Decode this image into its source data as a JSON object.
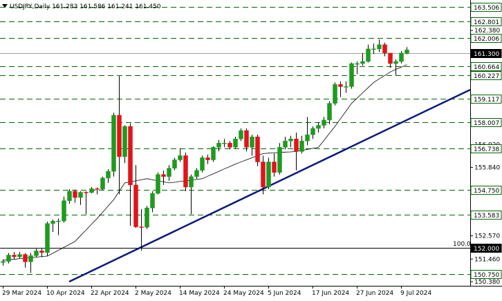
{
  "chart_data": {
    "type": "candlestick",
    "title": "USDJPY,Daily  161.283 161.586 161.241 161.450",
    "x_labels": [
      {
        "index": 0,
        "label": "29 Mar 2024"
      },
      {
        "index": 8,
        "label": "10 Apr 2024"
      },
      {
        "index": 16,
        "label": "22 Apr 2024"
      },
      {
        "index": 24,
        "label": "2 May 2024"
      },
      {
        "index": 32,
        "label": "14 May 2024"
      },
      {
        "index": 40,
        "label": "24 May 2024"
      },
      {
        "index": 48,
        "label": "5 Jun 2024"
      },
      {
        "index": 56,
        "label": "17 Jun 2024"
      },
      {
        "index": 64,
        "label": "27 Jun 2024"
      },
      {
        "index": 72,
        "label": "9 Jul 2024"
      }
    ],
    "open": [
      151.3,
      151.35,
      151.65,
      151.57,
      151.68,
      151.33,
      151.62,
      151.85,
      151.77,
      153.16,
      153.27,
      153.28,
      154.25,
      154.7,
      154.4,
      154.65,
      154.64,
      154.82,
      154.8,
      155.33,
      155.65,
      158.33,
      156.35,
      157.8,
      155.0,
      153.0,
      152.98,
      153.9,
      154.6,
      155.5,
      155.4,
      155.8,
      156.2,
      156.4,
      154.9,
      155.4,
      155.7,
      156.3,
      156.2,
      156.8,
      157.0,
      157.0,
      156.8,
      157.2,
      157.6,
      156.8,
      157.3,
      156.1,
      154.9,
      156.1,
      155.6,
      156.8,
      157.1,
      157.2,
      156.6,
      157.1,
      157.4,
      157.7,
      157.85,
      158.1,
      158.9,
      159.8,
      159.7,
      159.7,
      160.8,
      160.8,
      160.9,
      161.5,
      161.5,
      161.7,
      161.3,
      160.8,
      160.9,
      161.283
    ],
    "high": [
      151.45,
      151.75,
      151.8,
      151.8,
      151.75,
      151.75,
      151.95,
      151.95,
      153.25,
      153.35,
      153.4,
      154.45,
      154.8,
      154.78,
      154.7,
      154.7,
      154.9,
      154.88,
      155.4,
      155.75,
      158.45,
      160.2,
      157.85,
      157.95,
      155.95,
      153.85,
      154.0,
      154.7,
      155.6,
      155.7,
      155.95,
      156.3,
      156.75,
      156.55,
      155.5,
      155.8,
      156.4,
      156.45,
      156.85,
      157.15,
      157.2,
      157.1,
      157.3,
      157.7,
      157.7,
      157.4,
      157.4,
      156.4,
      156.3,
      156.5,
      157.0,
      157.3,
      157.35,
      157.5,
      157.35,
      158.25,
      157.8,
      158.0,
      158.25,
      159.0,
      159.9,
      159.95,
      159.95,
      160.85,
      160.9,
      161.3,
      161.7,
      161.75,
      161.95,
      161.8,
      161.3,
      161.0,
      161.4,
      161.586
    ],
    "low": [
      151.15,
      151.25,
      151.45,
      151.5,
      151.05,
      150.8,
      151.55,
      151.55,
      151.6,
      152.75,
      152.6,
      153.2,
      154.1,
      154.15,
      154.05,
      153.6,
      154.6,
      154.55,
      154.75,
      155.1,
      155.4,
      154.55,
      156.05,
      153.05,
      152.95,
      151.86,
      152.9,
      153.7,
      154.55,
      155.0,
      155.2,
      155.7,
      156.1,
      154.7,
      153.6,
      155.3,
      155.6,
      156.0,
      156.1,
      156.6,
      156.8,
      156.7,
      156.75,
      157.1,
      156.6,
      156.4,
      155.9,
      154.55,
      154.8,
      155.4,
      155.5,
      156.7,
      156.8,
      155.7,
      156.5,
      156.9,
      157.2,
      157.5,
      157.7,
      157.9,
      158.8,
      159.2,
      159.4,
      159.6,
      160.3,
      160.7,
      160.85,
      161.25,
      161.35,
      161.15,
      160.6,
      160.25,
      160.8,
      161.241
    ],
    "close": [
      151.35,
      151.65,
      151.57,
      151.68,
      151.33,
      151.62,
      151.85,
      151.77,
      153.16,
      153.27,
      153.28,
      154.25,
      154.7,
      154.4,
      154.65,
      154.64,
      154.82,
      154.8,
      155.33,
      155.65,
      158.33,
      156.35,
      157.8,
      155.0,
      153.0,
      152.98,
      153.9,
      154.6,
      155.5,
      155.4,
      155.8,
      156.2,
      156.4,
      154.9,
      155.4,
      155.7,
      156.3,
      156.2,
      156.8,
      157.0,
      157.0,
      156.8,
      157.2,
      157.6,
      156.8,
      157.3,
      156.1,
      154.9,
      156.1,
      155.6,
      156.8,
      157.1,
      157.2,
      156.6,
      157.1,
      157.4,
      157.7,
      157.85,
      158.1,
      158.9,
      159.8,
      159.7,
      159.7,
      160.8,
      160.8,
      160.9,
      161.5,
      161.5,
      161.7,
      161.3,
      160.8,
      160.9,
      161.3,
      161.45
    ],
    "up_color": "#1f9a1f",
    "down_color": "#e0141a",
    "ma": {
      "color": "#000000",
      "values": [
        151.4,
        151.43,
        151.45,
        151.48,
        151.5,
        151.53,
        151.55,
        151.58,
        151.6,
        151.74,
        151.88,
        152.02,
        152.16,
        152.3,
        152.58,
        152.85,
        153.13,
        153.4,
        153.7,
        154.0,
        154.3,
        154.7,
        155.1,
        155.15,
        155.2,
        155.25,
        155.3,
        155.25,
        155.2,
        155.15,
        155.1,
        155.13,
        155.17,
        155.2,
        155.23,
        155.27,
        155.3,
        155.42,
        155.53,
        155.65,
        155.77,
        155.88,
        156.0,
        156.1,
        156.2,
        156.3,
        156.4,
        156.5,
        156.52,
        156.53,
        156.55,
        156.57,
        156.58,
        156.6,
        156.65,
        156.7,
        156.75,
        156.8,
        157.13,
        157.47,
        157.8,
        158.17,
        158.53,
        158.9,
        159.15,
        159.4,
        159.65,
        159.9,
        160.07,
        160.23,
        160.4,
        160.52,
        160.63,
        160.75
      ]
    },
    "trendline": {
      "color": "#0a1a7a",
      "from": {
        "index": 12,
        "price": 150.38
      },
      "to": {
        "index": 84.5,
        "price": 159.55
      }
    },
    "ylim": [
      150.182,
      163.836
    ],
    "yticks": [
      {
        "value": 162.38,
        "label": "162.380"
      },
      {
        "value": 156.92,
        "label": "156.920"
      },
      {
        "value": 155.84,
        "label": "155.840"
      },
      {
        "value": 152.57,
        "label": "152.570"
      },
      {
        "value": 151.46,
        "label": "151.460"
      },
      {
        "value": 150.38,
        "label": "150.380"
      }
    ],
    "levels": [
      {
        "value": 163.506,
        "label": "163.506",
        "style": "dash"
      },
      {
        "value": 162.801,
        "label": "162.801",
        "style": "dash"
      },
      {
        "value": 162.006,
        "label": "162.006",
        "style": "dash"
      },
      {
        "value": 161.3,
        "label": "161.300",
        "style": "current"
      },
      {
        "value": 160.664,
        "label": "160.664",
        "style": "dash"
      },
      {
        "value": 160.227,
        "label": "160.227",
        "style": "dash"
      },
      {
        "value": 159.117,
        "label": "159.117",
        "style": "dash"
      },
      {
        "value": 158.007,
        "label": "158.007",
        "style": "dash"
      },
      {
        "value": 156.738,
        "label": "156.738",
        "style": "dash"
      },
      {
        "value": 154.75,
        "label": "154.750",
        "style": "dash"
      },
      {
        "value": 153.583,
        "label": "153.583",
        "style": "dash"
      },
      {
        "value": 152.0,
        "label": "152.000",
        "style": "solid"
      },
      {
        "value": 150.75,
        "label": "150.750",
        "style": "dash"
      }
    ],
    "annotation": {
      "text": "100.0",
      "price": 152.0
    }
  }
}
